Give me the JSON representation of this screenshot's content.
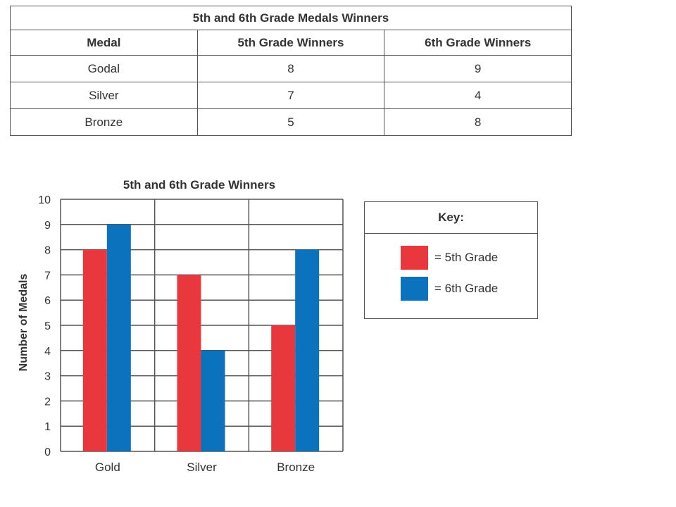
{
  "table": {
    "title": "5th and 6th Grade Medals Winners",
    "columns": [
      "Medal",
      "5th Grade Winners",
      "6th Grade Winners"
    ],
    "rows": [
      [
        "Godal",
        "8",
        "9"
      ],
      [
        "Silver",
        "7",
        "4"
      ],
      [
        "Bronze",
        "5",
        "8"
      ]
    ]
  },
  "key": {
    "title": "Key:",
    "items": [
      {
        "label": "= 5th Grade",
        "color": "#e8383d"
      },
      {
        "label": "= 6th Grade",
        "color": "#0b72bd"
      }
    ]
  },
  "chart_data": {
    "type": "bar",
    "title": "5th and 6th Grade Winners",
    "xlabel": "",
    "ylabel": "Number of Medals",
    "categories": [
      "Gold",
      "Silver",
      "Bronze"
    ],
    "series": [
      {
        "name": "5th Grade",
        "values": [
          8,
          7,
          5
        ],
        "color": "#e8383d"
      },
      {
        "name": "6th Grade",
        "values": [
          9,
          4,
          8
        ],
        "color": "#0b72bd"
      }
    ],
    "ylim": [
      0,
      10
    ],
    "yticks": [
      "0",
      "1",
      "2",
      "3",
      "4",
      "5",
      "6",
      "7",
      "8",
      "9",
      "10"
    ],
    "grid": true,
    "legend": "right"
  }
}
